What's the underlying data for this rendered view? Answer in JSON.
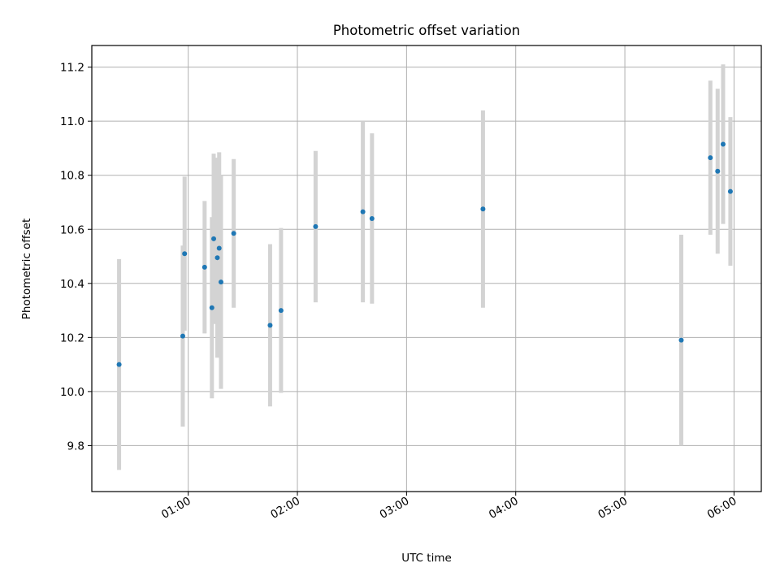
{
  "chart_data": {
    "type": "scatter",
    "title": "Photometric offset variation",
    "xlabel": "UTC time",
    "ylabel": "Photometric offset",
    "x_ticks": [
      "01:00",
      "02:00",
      "03:00",
      "04:00",
      "05:00",
      "06:00"
    ],
    "y_ticks": [
      "9.8",
      "10.0",
      "10.2",
      "10.4",
      "10.6",
      "10.8",
      "11.0",
      "11.2"
    ],
    "xlim": [
      "00:07",
      "06:15"
    ],
    "ylim": [
      9.63,
      11.28
    ],
    "grid": true,
    "marker_color": "#1f77b4",
    "errorbar_color": "#d3d3d3",
    "points": [
      {
        "x": "00:22",
        "y": 10.1,
        "err": 0.39
      },
      {
        "x": "00:57",
        "y": 10.205,
        "err": 0.335
      },
      {
        "x": "00:58",
        "y": 10.51,
        "err": 0.285
      },
      {
        "x": "01:09",
        "y": 10.46,
        "err": 0.245
      },
      {
        "x": "01:13",
        "y": 10.31,
        "err": 0.335
      },
      {
        "x": "01:14",
        "y": 10.565,
        "err": 0.315
      },
      {
        "x": "01:16",
        "y": 10.495,
        "err": 0.37
      },
      {
        "x": "01:17",
        "y": 10.53,
        "err": 0.355
      },
      {
        "x": "01:18",
        "y": 10.405,
        "err": 0.395
      },
      {
        "x": "01:25",
        "y": 10.585,
        "err": 0.275
      },
      {
        "x": "01:45",
        "y": 10.245,
        "err": 0.3
      },
      {
        "x": "01:51",
        "y": 10.3,
        "err": 0.305
      },
      {
        "x": "02:10",
        "y": 10.61,
        "err": 0.28
      },
      {
        "x": "02:36",
        "y": 10.665,
        "err": 0.335
      },
      {
        "x": "02:41",
        "y": 10.64,
        "err": 0.315
      },
      {
        "x": "03:42",
        "y": 10.675,
        "err": 0.365
      },
      {
        "x": "05:31",
        "y": 10.19,
        "err": 0.39
      },
      {
        "x": "05:47",
        "y": 10.865,
        "err": 0.285
      },
      {
        "x": "05:51",
        "y": 10.815,
        "err": 0.305
      },
      {
        "x": "05:54",
        "y": 10.915,
        "err": 0.295
      },
      {
        "x": "05:58",
        "y": 10.74,
        "err": 0.275
      }
    ]
  }
}
